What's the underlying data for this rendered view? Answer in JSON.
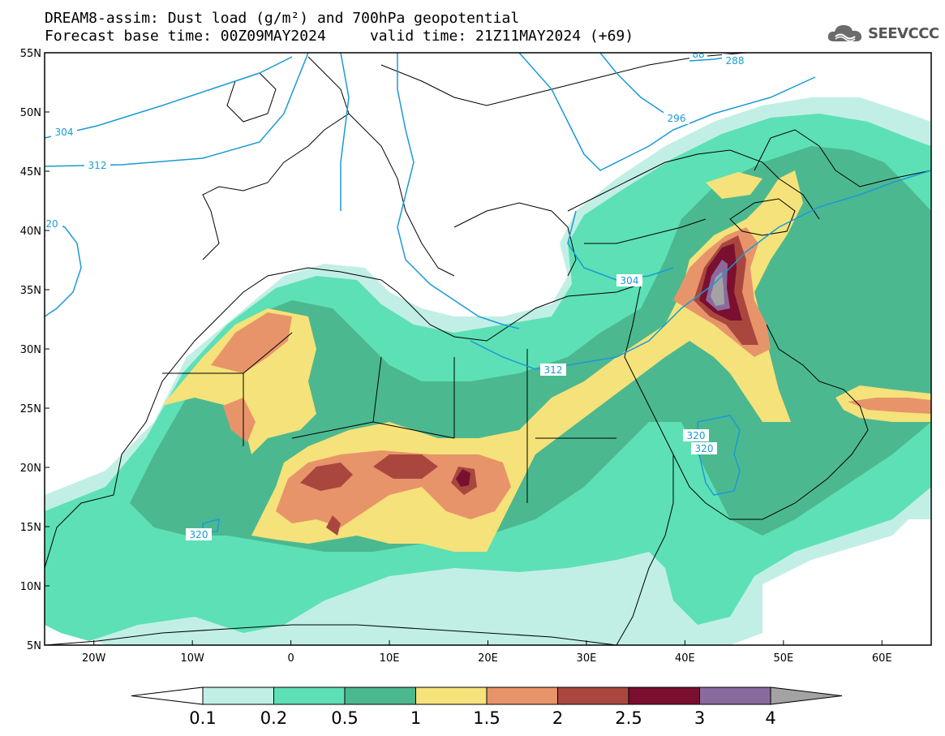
{
  "title": {
    "line1": "DREAM8-assim: Dust load (g/m²) and 700hPa geopotential",
    "line2": "Forecast base time: 00Z09MAY2024     valid time: 21Z11MAY2024 (+69)"
  },
  "logo": {
    "icon": "cloud-icon",
    "text": "SEEVCCC"
  },
  "axes": {
    "lat_labels": [
      "55N",
      "50N",
      "45N",
      "40N",
      "35N",
      "30N",
      "25N",
      "20N",
      "15N",
      "10N",
      "5N"
    ],
    "lon_labels": [
      "20W",
      "10W",
      "0",
      "10E",
      "20E",
      "30E",
      "40E",
      "50E",
      "60E"
    ],
    "lat_range": [
      5,
      55
    ],
    "lon_range": [
      -25,
      65
    ]
  },
  "contour_labels": [
    "304",
    "312",
    "20",
    "288",
    "296",
    "304",
    "312",
    "320",
    "320",
    "320",
    "88"
  ],
  "colorbar": {
    "colors": [
      "#c1efe6",
      "#5de0b5",
      "#4cb88f",
      "#f5e27a",
      "#e8946a",
      "#a9473f",
      "#7a0f2f",
      "#8a6a9e",
      "#a3a3a3"
    ],
    "labels": [
      "0.1",
      "0.2",
      "0.5",
      "1",
      "1.5",
      "2",
      "2.5",
      "3",
      "4"
    ],
    "under_color": "#ffffff",
    "over_color": "#a3a3a3"
  },
  "colors": {
    "contour": "#1a9ad6",
    "coast": "#000000"
  }
}
